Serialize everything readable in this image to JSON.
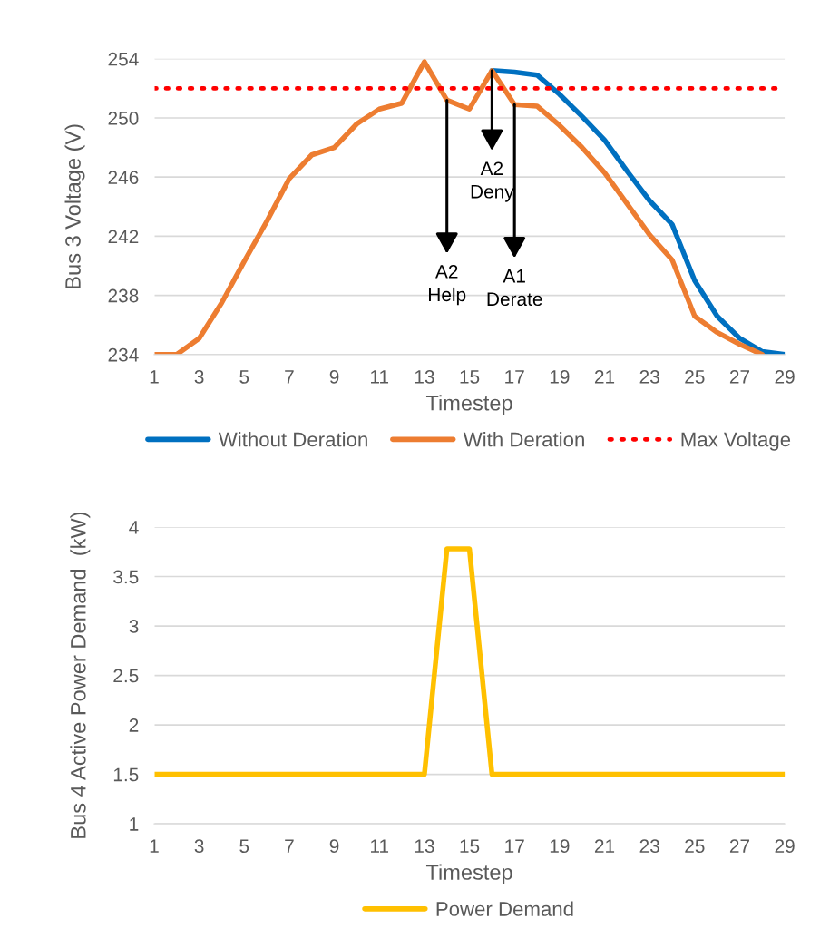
{
  "chart_data": [
    {
      "type": "line",
      "xlabel": "Timestep",
      "ylabel": "Bus 3 Voltage (V)",
      "x": [
        1,
        2,
        3,
        4,
        5,
        6,
        7,
        8,
        9,
        10,
        11,
        12,
        13,
        14,
        15,
        16,
        17,
        18,
        19,
        20,
        21,
        22,
        23,
        24,
        25,
        26,
        27,
        28,
        29
      ],
      "series": [
        {
          "name": "Without Deration",
          "color": "#0070c0",
          "values": [
            null,
            null,
            null,
            null,
            null,
            null,
            null,
            null,
            null,
            null,
            null,
            null,
            null,
            null,
            null,
            253.2,
            253.1,
            252.9,
            251.6,
            250.1,
            248.5,
            246.4,
            244.4,
            242.8,
            239,
            236.6,
            235.1,
            234.2,
            234
          ]
        },
        {
          "name": "With Deration",
          "color": "#ed7d31",
          "values": [
            234,
            234,
            235.1,
            237.5,
            240.3,
            243,
            245.9,
            247.5,
            248,
            249.6,
            250.6,
            251,
            253.8,
            251.2,
            250.6,
            253.2,
            250.9,
            250.8,
            249.5,
            248,
            246.3,
            244.2,
            242.1,
            240.4,
            236.6,
            235.5,
            234.7,
            234,
            null
          ]
        }
      ],
      "ref_lines": [
        {
          "axis": "y",
          "value": 252,
          "label": "Max Voltage",
          "color": "#ff0000",
          "line_style": "dotted"
        }
      ],
      "annotations": [
        {
          "text": "A2\nHelp",
          "x": 14,
          "y": 251.2
        },
        {
          "text": "A2\nDeny",
          "x": 16,
          "y": 253.2
        },
        {
          "text": "A1\nDerate",
          "x": 17,
          "y": 250.9
        }
      ],
      "xlim": [
        1,
        29
      ],
      "xticks": [
        1,
        3,
        5,
        7,
        9,
        11,
        13,
        15,
        17,
        19,
        21,
        23,
        25,
        27,
        29
      ],
      "ylim": [
        234,
        254
      ],
      "yticks": [
        234,
        238,
        242,
        246,
        250,
        254
      ],
      "grid": "y",
      "legend": "bottom",
      "line_style": "solid",
      "marker": "none"
    },
    {
      "type": "line",
      "xlabel": "Timestep",
      "ylabel": "Bus 4 Active Power Demand  (kW)",
      "x": [
        1,
        2,
        3,
        4,
        5,
        6,
        7,
        8,
        9,
        10,
        11,
        12,
        13,
        14,
        15,
        16,
        17,
        18,
        19,
        20,
        21,
        22,
        23,
        24,
        25,
        26,
        27,
        28,
        29
      ],
      "series": [
        {
          "name": "Power Demand",
          "color": "#ffc000",
          "values": [
            1.5,
            1.5,
            1.5,
            1.5,
            1.5,
            1.5,
            1.5,
            1.5,
            1.5,
            1.5,
            1.5,
            1.5,
            1.5,
            3.78,
            3.78,
            1.5,
            1.5,
            1.5,
            1.5,
            1.5,
            1.5,
            1.5,
            1.5,
            1.5,
            1.5,
            1.5,
            1.5,
            1.5,
            1.5
          ]
        }
      ],
      "xlim": [
        1,
        29
      ],
      "xticks": [
        1,
        3,
        5,
        7,
        9,
        11,
        13,
        15,
        17,
        19,
        21,
        23,
        25,
        27,
        29
      ],
      "ylim": [
        1,
        4
      ],
      "yticks": [
        1,
        1.5,
        2,
        2.5,
        3,
        3.5,
        4
      ],
      "grid": "y",
      "legend": "bottom",
      "line_style": "solid",
      "marker": "none"
    }
  ]
}
